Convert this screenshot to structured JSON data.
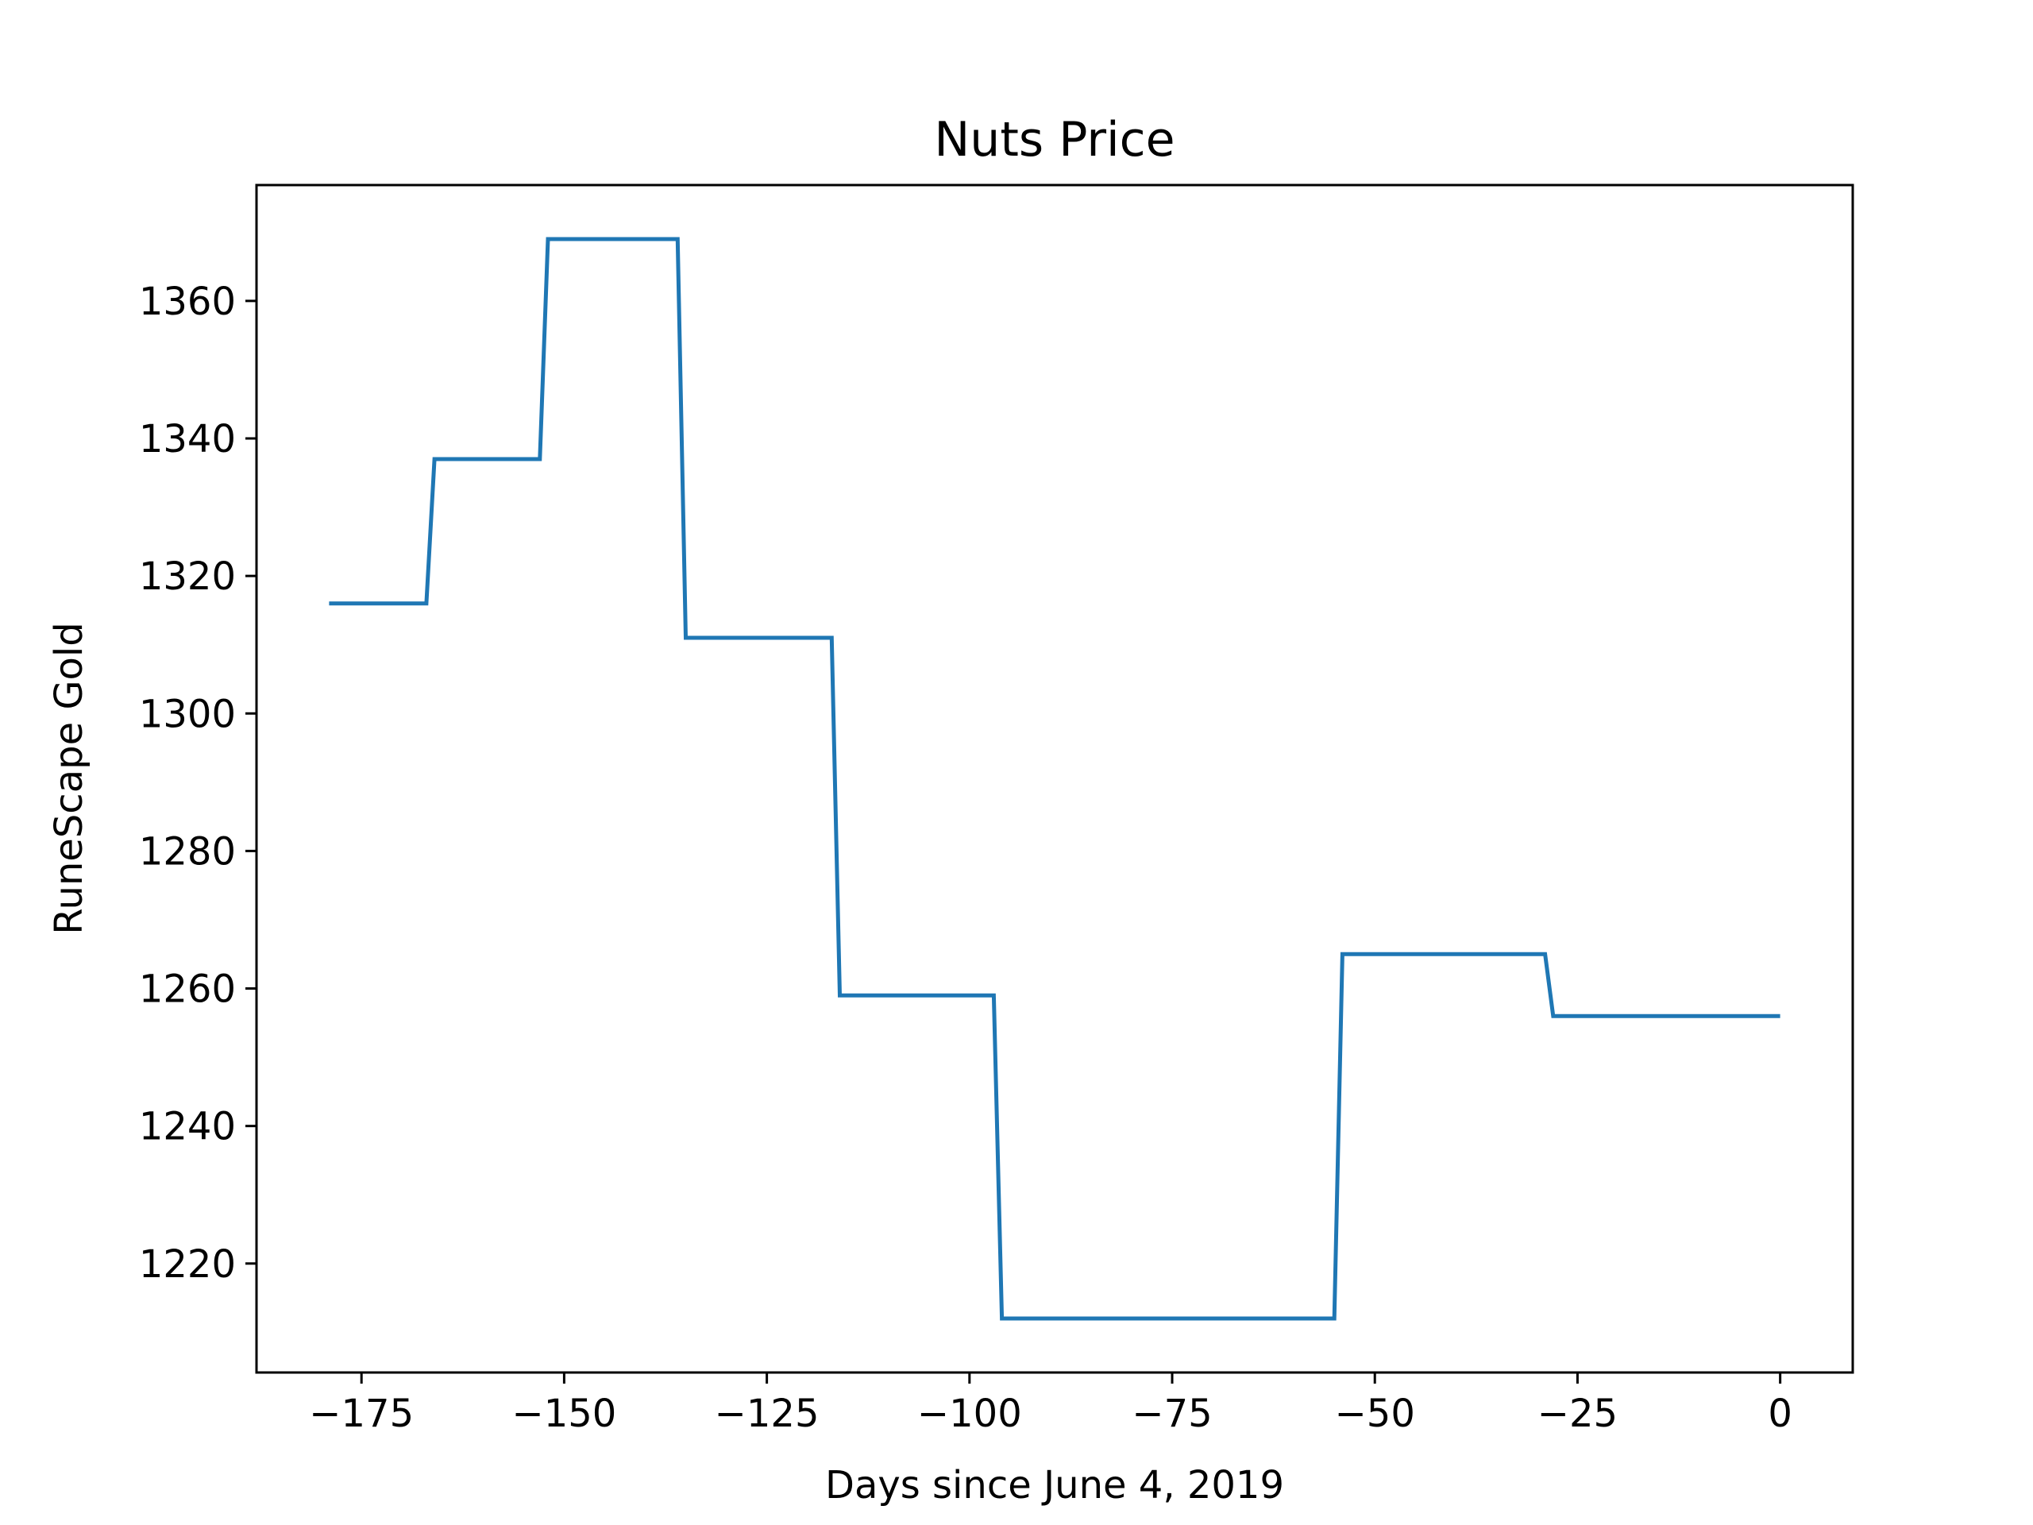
{
  "chart_data": {
    "type": "line",
    "title": "Nuts Price",
    "xlabel": "Days since June 4, 2019",
    "ylabel": "RuneScape Gold",
    "xlim": [
      -187.95,
      8.95
    ],
    "ylim": [
      1204.15,
      1376.85
    ],
    "x_ticks": [
      -175,
      -150,
      -125,
      -100,
      -75,
      -50,
      -25,
      0
    ],
    "x_tick_labels": [
      "−175",
      "−150",
      "−125",
      "−100",
      "−75",
      "−50",
      "−25",
      "0"
    ],
    "y_ticks": [
      1220,
      1240,
      1260,
      1280,
      1300,
      1320,
      1340,
      1360
    ],
    "y_tick_labels": [
      "1220",
      "1240",
      "1260",
      "1280",
      "1300",
      "1320",
      "1340",
      "1360"
    ],
    "grid": false,
    "series": [
      {
        "color": "#1f77b4",
        "x": [
          -179,
          -167,
          -166,
          -153,
          -152,
          -136,
          -135,
          -117,
          -116,
          -97,
          -96,
          -55,
          -54,
          -29,
          -28,
          0
        ],
        "y": [
          1316,
          1316,
          1337,
          1337,
          1369,
          1369,
          1311,
          1311,
          1259,
          1259,
          1212,
          1212,
          1265,
          1265,
          1256,
          1256
        ]
      }
    ]
  }
}
